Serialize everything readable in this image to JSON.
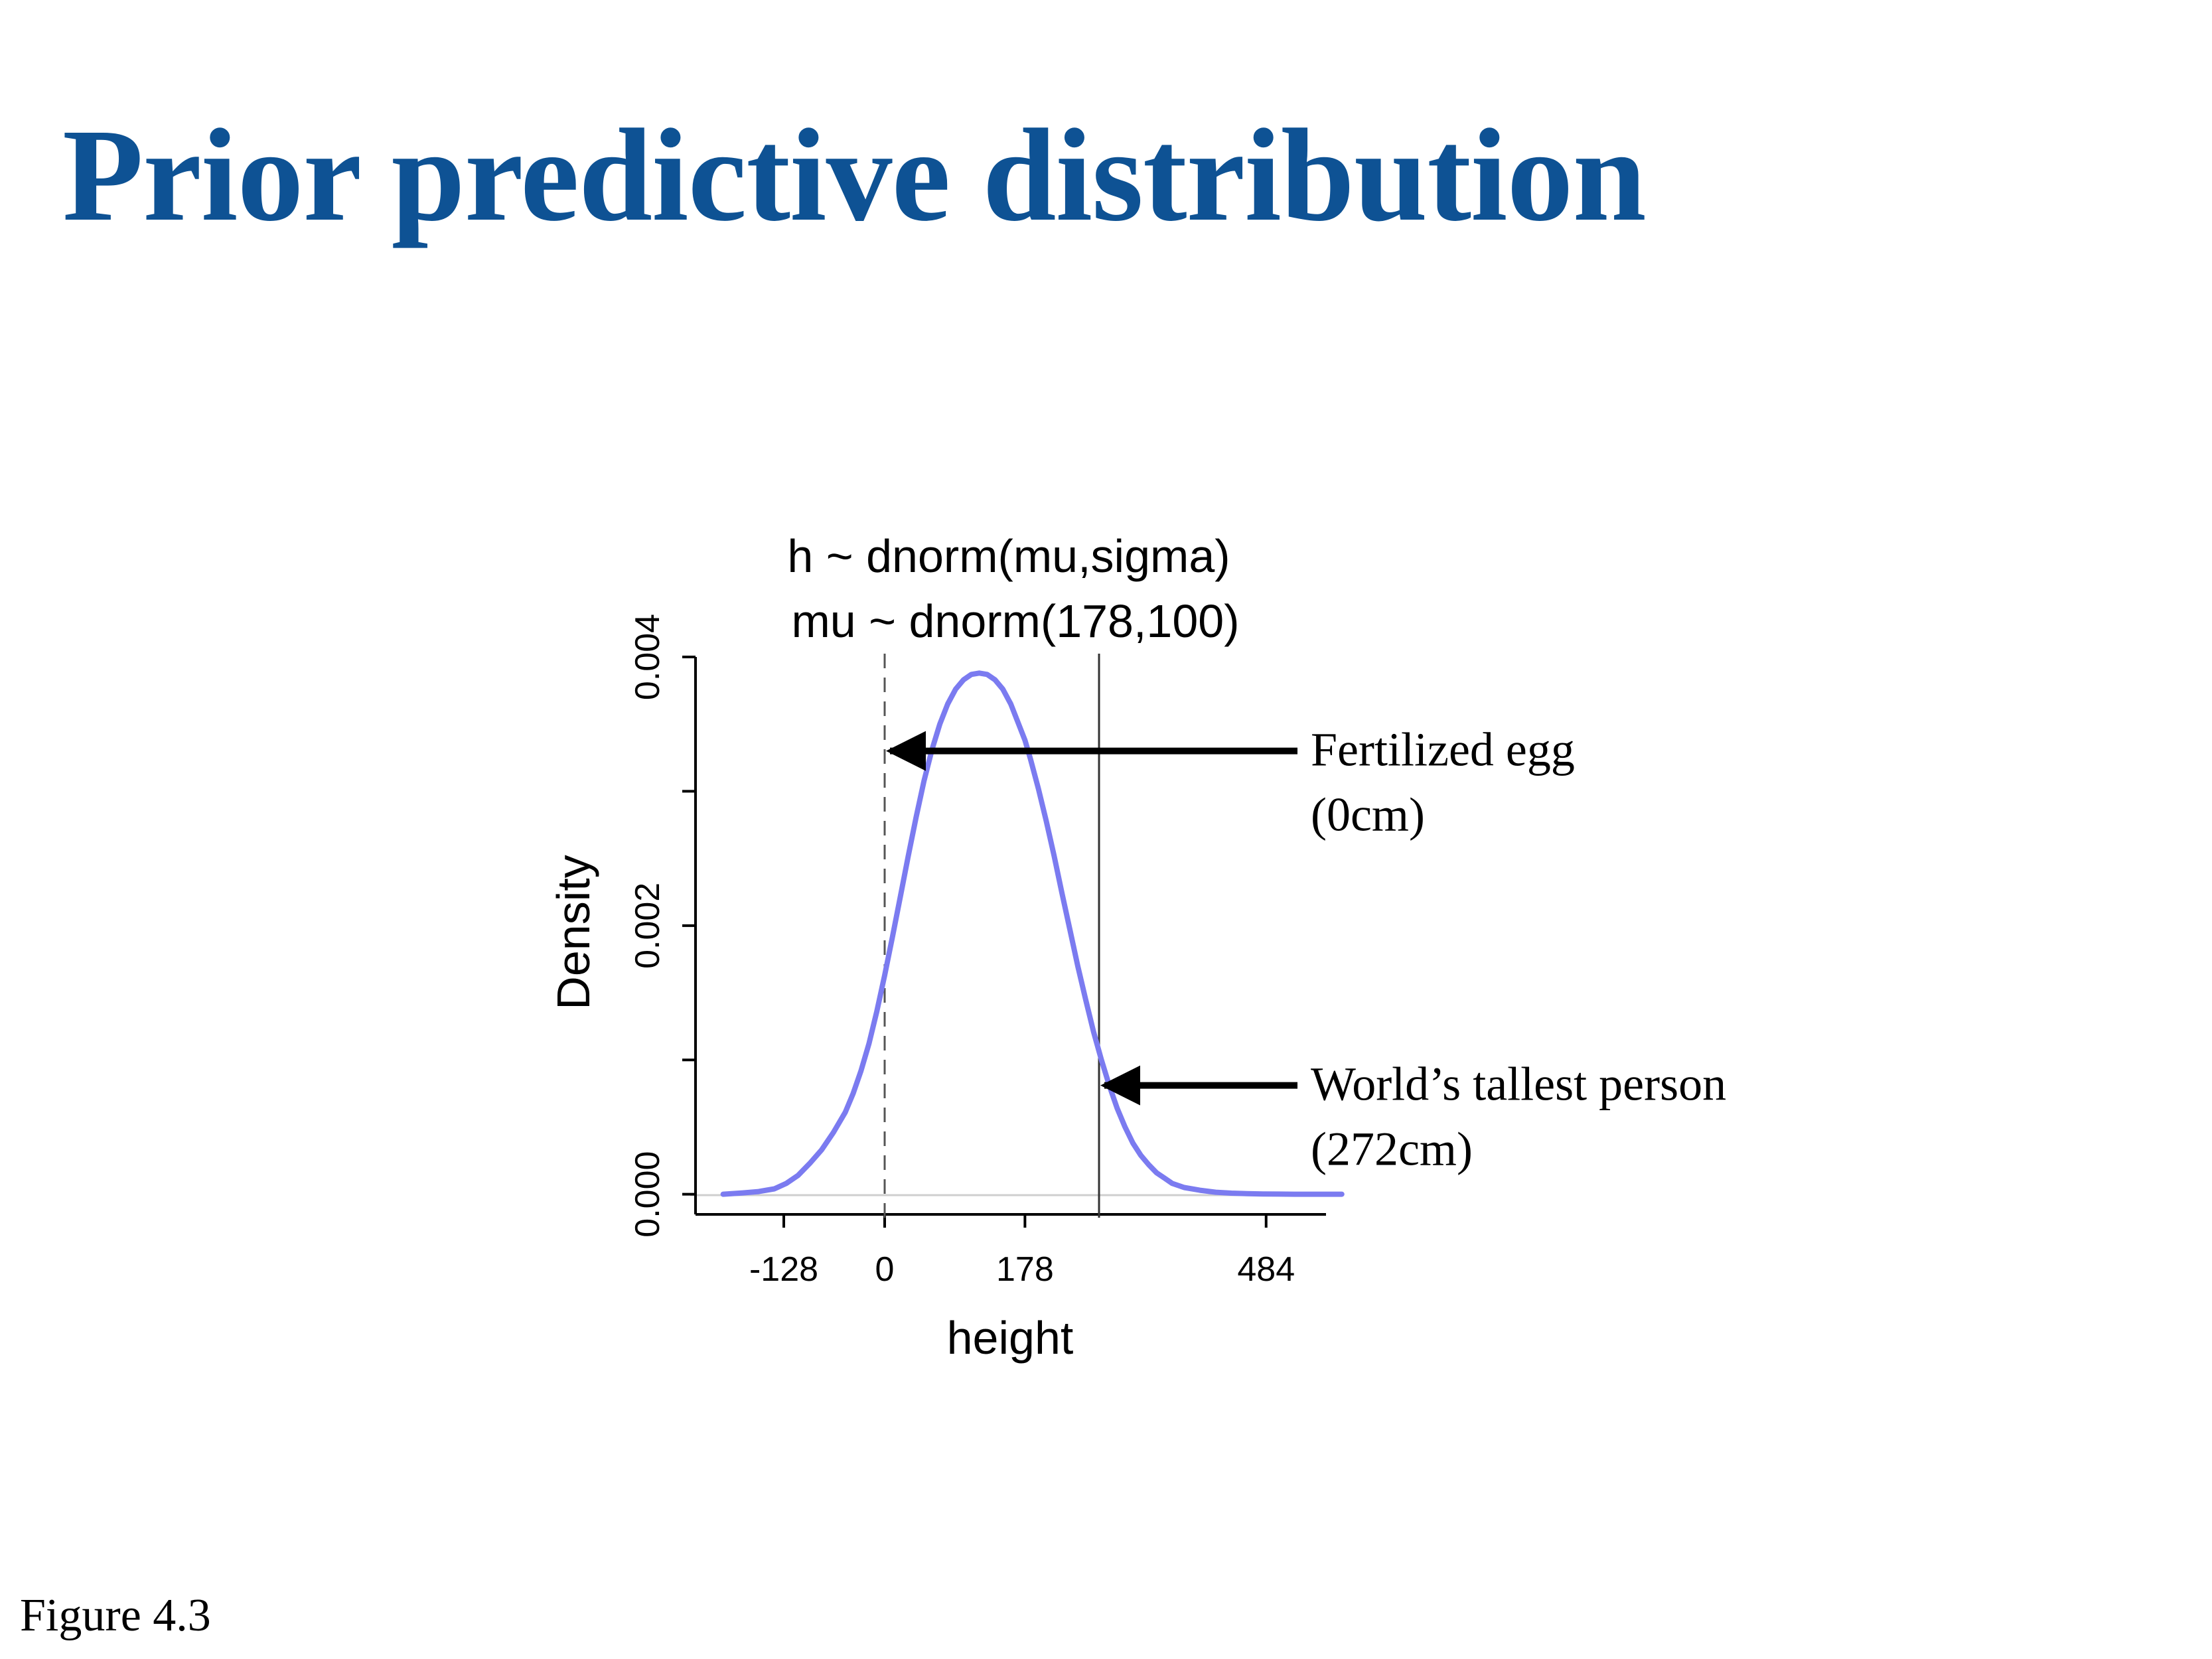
{
  "slide": {
    "title": "Prior predictive distribution",
    "caption": "Figure 4.3",
    "title_color": "#0e5294"
  },
  "chart_data": {
    "type": "line",
    "title_lines": [
      "h ~ dnorm(mu,sigma)",
      "mu ~ dnorm(178,100)"
    ],
    "xlabel": "height",
    "ylabel": "Density",
    "xlim": [
      -240,
      560
    ],
    "ylim": [
      -0.00015,
      0.004
    ],
    "x_ticks": [
      -128,
      0,
      178,
      484
    ],
    "x_tick_labels": [
      "-128",
      "0",
      "178",
      "484"
    ],
    "y_ticks": [
      0,
      0.001,
      0.002,
      0.003,
      0.004
    ],
    "y_tick_labels": [
      "0.000",
      "",
      "0.002",
      "",
      "0.004"
    ],
    "grid": false,
    "line_color": "#7b7bf0",
    "series": [
      {
        "x": [
          -205,
          -180,
          -160,
          -140,
          -125,
          -110,
          -95,
          -80,
          -65,
          -50,
          -40,
          -30,
          -20,
          -10,
          0,
          10,
          20,
          30,
          40,
          50,
          60,
          70,
          80,
          90,
          100,
          110,
          120,
          130,
          140,
          150,
          160,
          170,
          178,
          185,
          195,
          205,
          215,
          225,
          235,
          245,
          255,
          265,
          275,
          285,
          295,
          305,
          315,
          325,
          335,
          345,
          355,
          365,
          380,
          400,
          420,
          440,
          460,
          480,
          500,
          520,
          540,
          560,
          580
        ],
        "y": [
          0.0,
          1e-05,
          2e-05,
          4e-05,
          8e-05,
          0.00014,
          0.00023,
          0.00033,
          0.00046,
          0.00061,
          0.00075,
          0.00092,
          0.00112,
          0.00136,
          0.00163,
          0.00192,
          0.00222,
          0.00252,
          0.00281,
          0.00308,
          0.00331,
          0.0035,
          0.00365,
          0.00376,
          0.00383,
          0.00387,
          0.00388,
          0.00387,
          0.00383,
          0.00376,
          0.00365,
          0.0035,
          0.00338,
          0.00324,
          0.00302,
          0.00278,
          0.00252,
          0.00224,
          0.00197,
          0.0017,
          0.00145,
          0.00121,
          0.001,
          0.00081,
          0.00064,
          0.0005,
          0.00038,
          0.00029,
          0.00022,
          0.00016,
          0.00012,
          8e-05,
          5e-05,
          3e-05,
          1.5e-05,
          8e-06,
          4e-06,
          2e-06,
          1e-06,
          0.0,
          0.0,
          0.0,
          0.0
        ]
      }
    ],
    "reference_lines": [
      {
        "x": 0,
        "style": "dashed"
      },
      {
        "x": 272,
        "style": "solid"
      }
    ],
    "annotations": [
      {
        "lines": [
          "Fertilized egg",
          "(0cm)"
        ],
        "x": 0,
        "arrow_y": 0.0033
      },
      {
        "lines": [
          "World’s tallest person",
          "(272cm)"
        ],
        "x": 272,
        "arrow_y": 0.00081
      }
    ]
  }
}
